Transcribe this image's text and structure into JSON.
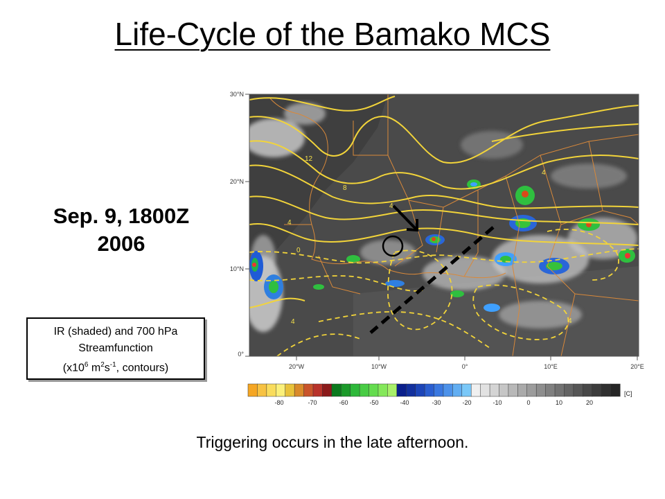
{
  "title": "Life-Cycle of the Bamako MCS",
  "date_line1": "Sep. 9, 1800Z",
  "date_line2": "2006",
  "caption": {
    "line1": "IR (shaded) and 700 hPa",
    "line2": "Streamfunction",
    "line3_pre": "(x10",
    "line3_sup1": "6",
    "line3_mid1": " m",
    "line3_sup2": "2",
    "line3_mid2": "s",
    "line3_sup3": "-1",
    "line3_post": ", contours)"
  },
  "bottom_text": "Triggering occurs in the late afternoon.",
  "map": {
    "lat_labels": [
      "30°N",
      "20°N",
      "10°N",
      "0°"
    ],
    "lon_labels": [
      "20°W",
      "10°W",
      "0°",
      "10°E",
      "20°E"
    ],
    "contour_labels": [
      "12",
      "8",
      "4",
      "4",
      "0",
      "4",
      "4",
      "4"
    ],
    "colorbar_labels": [
      "-80",
      "-70",
      "-60",
      "-50",
      "-40",
      "-30",
      "-20",
      "-10",
      "0",
      "10",
      "20"
    ],
    "colorbar_unit": "[C]",
    "colors": {
      "background": "#4a4a4a",
      "contour": "#f2d43a",
      "borders": "#d9893a",
      "annotation": "#000000"
    }
  }
}
